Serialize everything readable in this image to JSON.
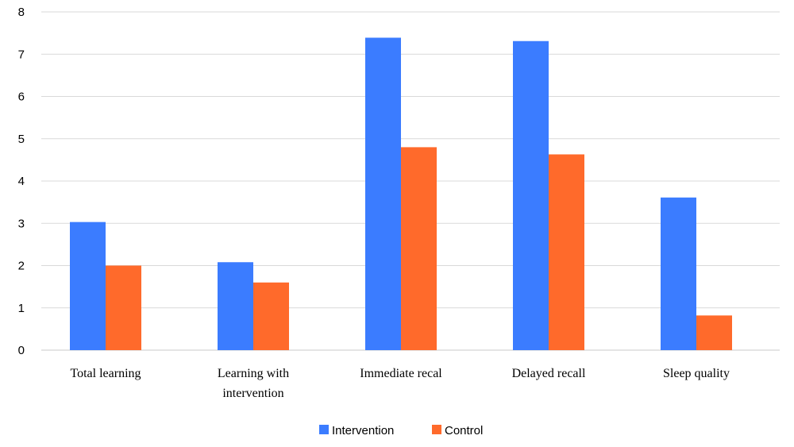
{
  "chart_data": {
    "type": "bar",
    "categories": [
      [
        "Total learning"
      ],
      [
        "Learning with",
        "intervention"
      ],
      [
        "Immediate recal"
      ],
      [
        "Delayed recall"
      ],
      [
        "Sleep quality"
      ]
    ],
    "series": [
      {
        "name": "Intervention",
        "color": "#3b7cff",
        "values": [
          3.03,
          2.08,
          7.39,
          7.31,
          3.61
        ]
      },
      {
        "name": "Control",
        "color": "#ff6a2b",
        "values": [
          2.0,
          1.6,
          4.8,
          4.63,
          0.82
        ]
      }
    ],
    "ylim": [
      0,
      8
    ],
    "yticks": [
      0,
      1,
      2,
      3,
      4,
      5,
      6,
      7,
      8
    ],
    "grid": true,
    "legend": "bottom-center",
    "title": "",
    "xlabel": "",
    "ylabel": ""
  }
}
